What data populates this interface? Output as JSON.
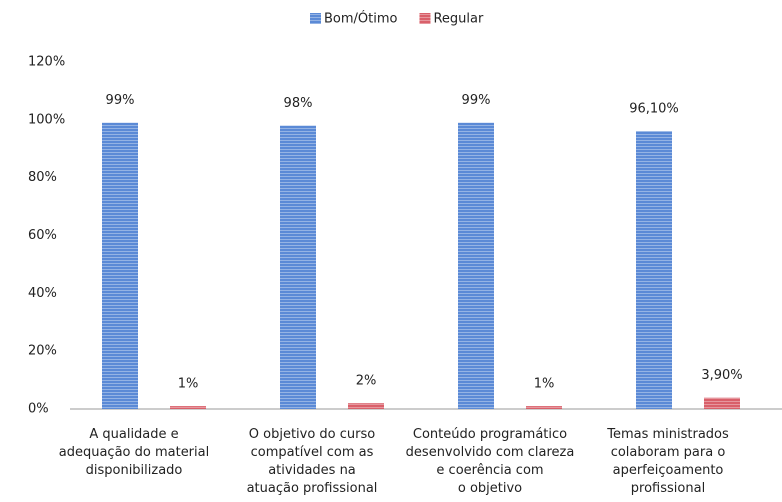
{
  "chart_data": {
    "type": "bar",
    "categories": [
      "A qualidade e\nadequação do material\ndisponibilizado",
      "O objetivo do curso\ncompatível com as\natividades na\natuação profissional",
      "Conteúdo programático\ndesenvolvido com clareza\ne coerência com\no objetivo",
      "Temas ministrados\ncolaboram para o\naperfeiçoamento\nprofissional"
    ],
    "series": [
      {
        "name": "Bom/Ótimo",
        "color": "#5b8ad6",
        "values": [
          99,
          98,
          99,
          96.1
        ],
        "value_labels": [
          "99%",
          "98%",
          "99%",
          "96,10%"
        ]
      },
      {
        "name": "Regular",
        "color": "#d9606a",
        "values": [
          1,
          2,
          1,
          3.9
        ],
        "value_labels": [
          "1%",
          "2%",
          "1%",
          "3,90%"
        ]
      }
    ],
    "ylim": [
      0,
      120
    ],
    "yticks": [
      {
        "value": 0,
        "label": "0%"
      },
      {
        "value": 20,
        "label": "20%"
      },
      {
        "value": 40,
        "label": "40%"
      },
      {
        "value": 60,
        "label": "60%"
      },
      {
        "value": 80,
        "label": "80%"
      },
      {
        "value": 100,
        "label": "100%"
      },
      {
        "value": 120,
        "label": "120%"
      }
    ],
    "grid": false,
    "legend": "top"
  }
}
